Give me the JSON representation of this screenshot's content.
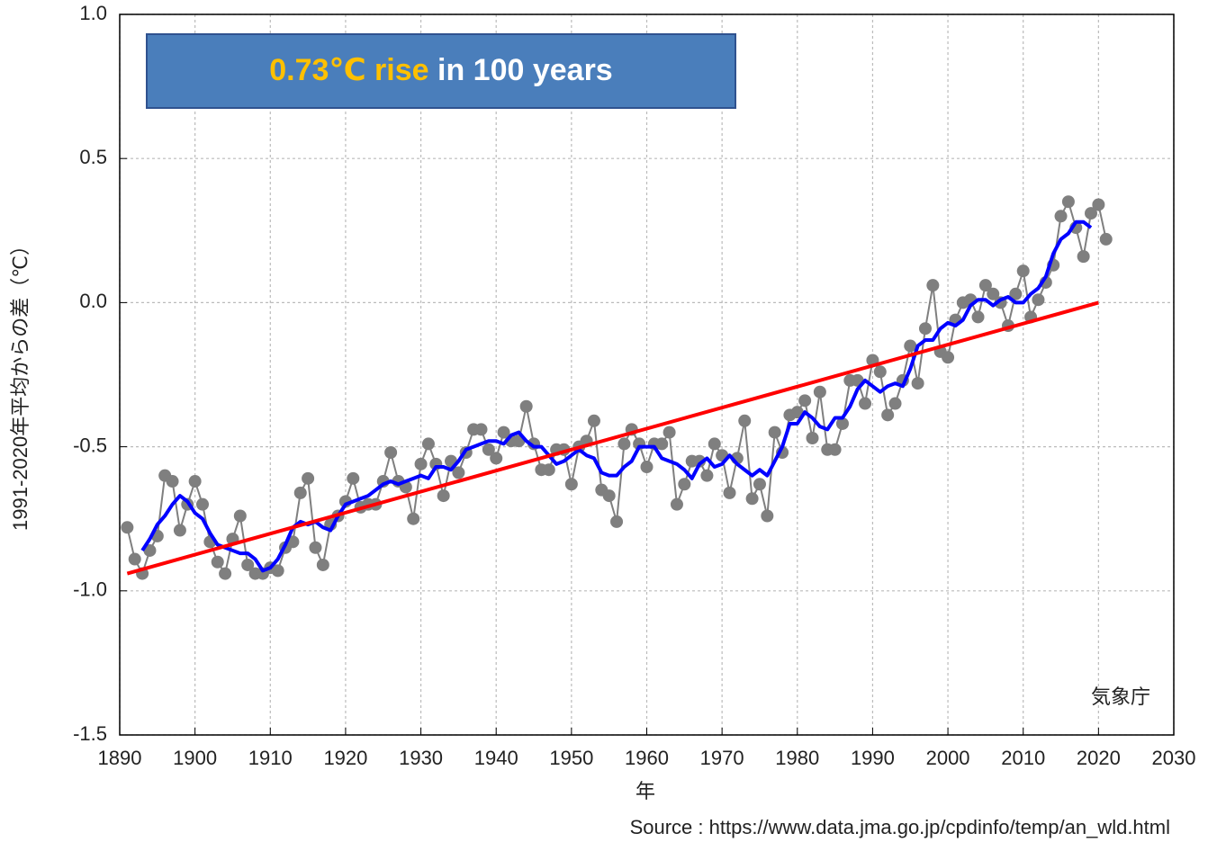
{
  "chart_data": {
    "type": "line",
    "annotation": {
      "highlight": "0.73℃ rise",
      "text": "in 100 years",
      "highlight_color": "#ffc000",
      "text_color": "#ffffff",
      "box_color": "#4a7ebb"
    },
    "ylabel": "1991-2020年平均からの差（℃）",
    "xlabel": "年",
    "credit": "気象庁",
    "source": "Source : https://www.data.jma.go.jp/cpdinfo/temp/an_wld.html",
    "xlim": [
      1890,
      2030
    ],
    "xticks": [
      1890,
      1900,
      1910,
      1920,
      1930,
      1940,
      1950,
      1960,
      1970,
      1980,
      1990,
      2000,
      2010,
      2020,
      2030
    ],
    "ylim": [
      -1.5,
      1.0
    ],
    "yticks": [
      {
        "value": -1.5,
        "label": "-1.5"
      },
      {
        "value": -1.0,
        "label": "-1.0"
      },
      -0.5,
      {
        "value": 0.0,
        "label": "0.0"
      },
      0.5,
      {
        "value": 1.0,
        "label": "1.0"
      }
    ],
    "grid": true,
    "x": [
      1891,
      1892,
      1893,
      1894,
      1895,
      1896,
      1897,
      1898,
      1899,
      1900,
      1901,
      1902,
      1903,
      1904,
      1905,
      1906,
      1907,
      1908,
      1909,
      1910,
      1911,
      1912,
      1913,
      1914,
      1915,
      1916,
      1917,
      1918,
      1919,
      1920,
      1921,
      1922,
      1923,
      1924,
      1925,
      1926,
      1927,
      1928,
      1929,
      1930,
      1931,
      1932,
      1933,
      1934,
      1935,
      1936,
      1937,
      1938,
      1939,
      1940,
      1941,
      1942,
      1943,
      1944,
      1945,
      1946,
      1947,
      1948,
      1949,
      1950,
      1951,
      1952,
      1953,
      1954,
      1955,
      1956,
      1957,
      1958,
      1959,
      1960,
      1961,
      1962,
      1963,
      1964,
      1965,
      1966,
      1967,
      1968,
      1969,
      1970,
      1971,
      1972,
      1973,
      1974,
      1975,
      1976,
      1977,
      1978,
      1979,
      1980,
      1981,
      1982,
      1983,
      1984,
      1985,
      1986,
      1987,
      1988,
      1989,
      1990,
      1991,
      1992,
      1993,
      1994,
      1995,
      1996,
      1997,
      1998,
      1999,
      2000,
      2001,
      2002,
      2003,
      2004,
      2005,
      2006,
      2007,
      2008,
      2009,
      2010,
      2011,
      2012,
      2013,
      2014,
      2015,
      2016,
      2017,
      2018,
      2019,
      2020,
      2021
    ],
    "series": [
      {
        "color": "#7f7f7f",
        "marker": "circle",
        "values": [
          -0.78,
          -0.89,
          -0.94,
          -0.86,
          -0.81,
          -0.6,
          -0.62,
          -0.79,
          -0.7,
          -0.62,
          -0.7,
          -0.83,
          -0.9,
          -0.94,
          -0.82,
          -0.74,
          -0.91,
          -0.94,
          -0.94,
          -0.92,
          -0.93,
          -0.85,
          -0.83,
          -0.66,
          -0.61,
          -0.85,
          -0.91,
          -0.77,
          -0.74,
          -0.69,
          -0.61,
          -0.71,
          -0.7,
          -0.7,
          -0.62,
          -0.52,
          -0.62,
          -0.64,
          -0.75,
          -0.56,
          -0.49,
          -0.56,
          -0.67,
          -0.55,
          -0.59,
          -0.52,
          -0.44,
          -0.44,
          -0.51,
          -0.54,
          -0.45,
          -0.48,
          -0.48,
          -0.36,
          -0.49,
          -0.58,
          -0.58,
          -0.51,
          -0.51,
          -0.63,
          -0.5,
          -0.48,
          -0.41,
          -0.65,
          -0.67,
          -0.76,
          -0.49,
          -0.44,
          -0.49,
          -0.57,
          -0.49,
          -0.49,
          -0.45,
          -0.7,
          -0.63,
          -0.55,
          -0.55,
          -0.6,
          -0.49,
          -0.53,
          -0.66,
          -0.54,
          -0.41,
          -0.68,
          -0.63,
          -0.74,
          -0.45,
          -0.52,
          -0.39,
          -0.38,
          -0.34,
          -0.47,
          -0.31,
          -0.51,
          -0.51,
          -0.42,
          -0.27,
          -0.27,
          -0.35,
          -0.2,
          -0.24,
          -0.39,
          -0.35,
          -0.27,
          -0.15,
          -0.28,
          -0.09,
          0.06,
          -0.17,
          -0.19,
          -0.06,
          0.0,
          0.01,
          -0.05,
          0.06,
          0.03,
          0.0,
          -0.08,
          0.03,
          0.11,
          -0.05,
          0.01,
          0.07,
          0.13,
          0.3,
          0.35,
          0.26,
          0.16,
          0.31,
          0.34,
          0.22
        ]
      },
      {
        "color": "#0000ff",
        "values": [
          null,
          null,
          -0.86,
          -0.82,
          -0.77,
          -0.74,
          -0.7,
          -0.67,
          -0.69,
          -0.73,
          -0.75,
          -0.8,
          -0.84,
          -0.85,
          -0.86,
          -0.87,
          -0.87,
          -0.89,
          -0.93,
          -0.92,
          -0.89,
          -0.84,
          -0.78,
          -0.76,
          -0.77,
          -0.76,
          -0.78,
          -0.79,
          -0.74,
          -0.7,
          -0.69,
          -0.68,
          -0.67,
          -0.65,
          -0.63,
          -0.62,
          -0.63,
          -0.62,
          -0.61,
          -0.6,
          -0.61,
          -0.57,
          -0.57,
          -0.58,
          -0.55,
          -0.51,
          -0.5,
          -0.49,
          -0.48,
          -0.48,
          -0.49,
          -0.46,
          -0.45,
          -0.48,
          -0.5,
          -0.5,
          -0.53,
          -0.56,
          -0.55,
          -0.53,
          -0.51,
          -0.53,
          -0.54,
          -0.59,
          -0.6,
          -0.6,
          -0.57,
          -0.55,
          -0.5,
          -0.5,
          -0.5,
          -0.54,
          -0.55,
          -0.56,
          -0.58,
          -0.61,
          -0.56,
          -0.54,
          -0.57,
          -0.56,
          -0.53,
          -0.56,
          -0.58,
          -0.6,
          -0.58,
          -0.6,
          -0.55,
          -0.5,
          -0.42,
          -0.42,
          -0.38,
          -0.4,
          -0.43,
          -0.44,
          -0.4,
          -0.4,
          -0.36,
          -0.3,
          -0.27,
          -0.29,
          -0.31,
          -0.29,
          -0.28,
          -0.29,
          -0.23,
          -0.15,
          -0.13,
          -0.13,
          -0.09,
          -0.07,
          -0.08,
          -0.06,
          -0.01,
          0.01,
          0.01,
          -0.01,
          0.01,
          0.02,
          0.0,
          0.0,
          0.03,
          0.05,
          0.09,
          0.17,
          0.22,
          0.24,
          0.28,
          0.28,
          0.26,
          null,
          null
        ]
      },
      {
        "color": "#ff0000",
        "x": [
          1891,
          2020
        ],
        "values": [
          -0.94,
          0.0
        ]
      }
    ]
  }
}
